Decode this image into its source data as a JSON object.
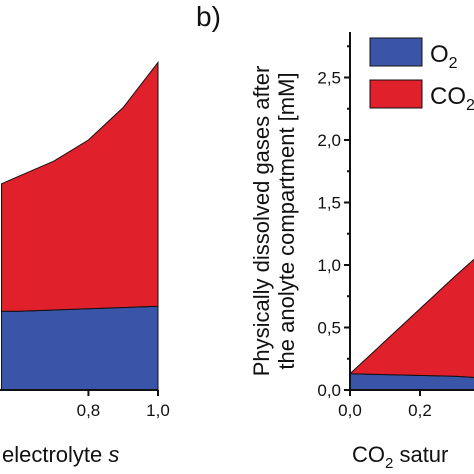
{
  "panel_label": "b)",
  "colors": {
    "o2": "#3a55a8",
    "co2": "#e0202a",
    "axis": "#111111"
  },
  "chart_data": [
    {
      "type": "area",
      "stacked": true,
      "xlabel": "electrolyte s",
      "x_ticks": [
        "0,8",
        "1,0"
      ],
      "x": [
        0.55,
        0.6,
        0.7,
        0.8,
        0.9,
        1.0
      ],
      "series": [
        {
          "name": "O2",
          "values": [
            0.63,
            0.63,
            0.64,
            0.65,
            0.66,
            0.67
          ]
        },
        {
          "name": "CO2",
          "values": [
            1.02,
            1.08,
            1.19,
            1.35,
            1.6,
            1.95
          ]
        }
      ],
      "xlim": [
        0.54,
        1.0
      ],
      "ylim": [
        0,
        2.8
      ]
    },
    {
      "type": "area",
      "stacked": true,
      "ylabel_line1": "Physically dissolved gases after",
      "ylabel_line2": "the anolyte compartment [mM]",
      "xlabel": "CO2 satur",
      "y_ticks": [
        "0,0",
        "0,5",
        "1,0",
        "1,5",
        "2,0",
        "2,5"
      ],
      "x_ticks": [
        "0,0",
        "0,2"
      ],
      "x": [
        0.0,
        0.15,
        0.3,
        0.36
      ],
      "series": [
        {
          "name": "O2",
          "values": [
            0.13,
            0.12,
            0.11,
            0.1
          ]
        },
        {
          "name": "CO2",
          "values": [
            0.0,
            0.4,
            0.8,
            0.96
          ]
        }
      ],
      "legend": [
        "O2",
        "CO2"
      ],
      "legend_position": "top-right",
      "xlim": [
        0.0,
        0.36
      ],
      "ylim": [
        0,
        2.8
      ]
    }
  ],
  "text": {
    "xlabel_left": "electrolyte ",
    "xlabel_left_italic": "s",
    "xlabel_right_prefix": "CO",
    "xlabel_right_sub": "2",
    "xlabel_right_suffix": " satur",
    "legend_o2_main": "O",
    "legend_o2_sub": "2",
    "legend_co2_main": "CO",
    "legend_co2_sub": "2"
  }
}
